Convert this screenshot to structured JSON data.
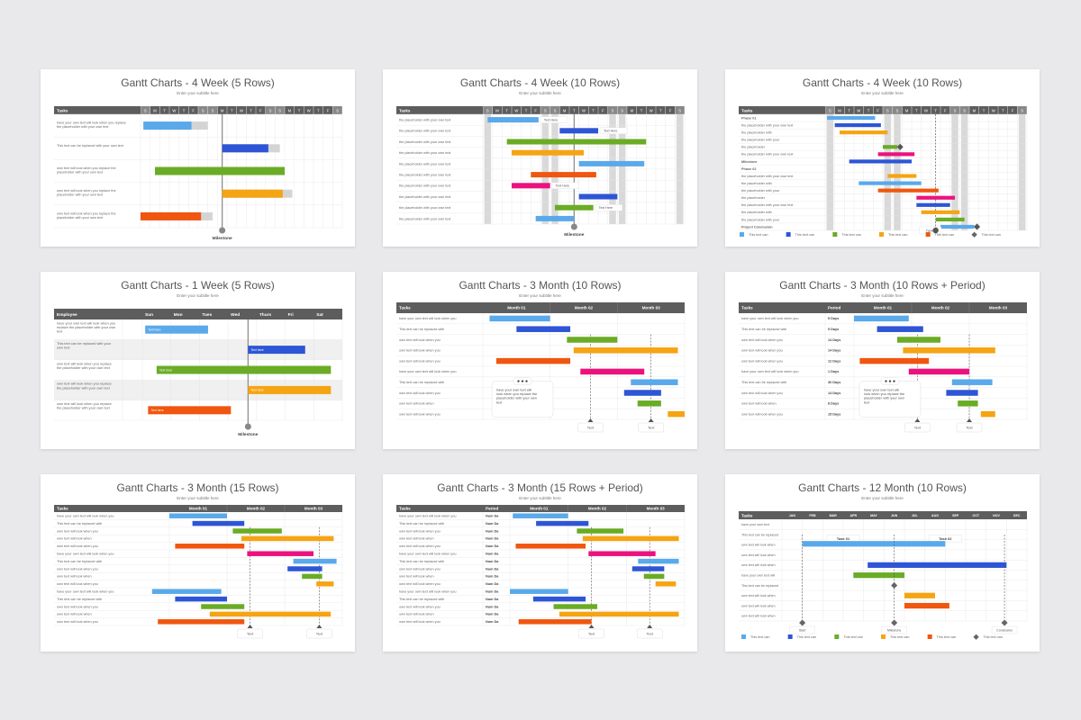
{
  "colors": {
    "blue_light": "#5aa9ea",
    "blue_dark": "#2d55d6",
    "green": "#6aac25",
    "orange": "#f5a413",
    "red": "#f0560f",
    "pink": "#ec127d",
    "gray_bar": "#d4d4d4",
    "header_bg": "#5d5d5d",
    "weekend_shade": "#d9d9d9",
    "milestone": "#888888"
  },
  "common": {
    "subtitle": "Enter your subtitle here",
    "tasks_header": "Tasks",
    "period_header": "Period",
    "milestone_label": "Milestone",
    "text_label": "Text",
    "text_here": "Text Here",
    "tooltip_text": "have your own text will look when you replace the placeholder with your own text",
    "days_labels": [
      "S",
      "M",
      "T",
      "W",
      "T",
      "F",
      "S"
    ],
    "legend_label": "This text can",
    "legend_items": [
      "This text can",
      "This text can",
      "This text can",
      "This text can",
      "This text can",
      "This text can"
    ]
  },
  "charts": [
    {
      "title": "Gantt Charts - 4 Week (5 Rows)",
      "type": "week4_5",
      "header": "Tasks",
      "task_texts": [
        "have your own text will look when you replace the placeholder with your own text",
        "This text can be replaced with your own text",
        "own text will look when you replace the placeholder with your own text",
        "own text will look when you replace the placeholder with your own text",
        "own text will look when you replace the placeholder with your own text"
      ],
      "bars": [
        {
          "start": 0.3,
          "end": 5.3,
          "color": "blue_light",
          "ghost": 7.0
        },
        {
          "start": 8.5,
          "end": 13.3,
          "color": "blue_dark",
          "ghost": 14.5
        },
        {
          "start": 1.5,
          "end": 15.0,
          "color": "green"
        },
        {
          "start": 8.5,
          "end": 14.8,
          "color": "orange",
          "ghost": 15.8
        },
        {
          "start": 0.0,
          "end": 6.3,
          "color": "red",
          "ghost": 7.5
        }
      ],
      "milestone_col": 8.5,
      "milestone": "Milestone"
    },
    {
      "title": "Gantt Charts - 4 Week (10 Rows)",
      "type": "week4_10",
      "header": "Tasks",
      "task_texts": [
        "the placeholder with your own text",
        "the placeholder with your own text",
        "the placeholder with your own text",
        "the placeholder with your own text",
        "the placeholder with your own text",
        "the placeholder with your own text",
        "the placeholder with your own text",
        "the placeholder with your own text",
        "the placeholder with your own text",
        "the placeholder with your own text"
      ],
      "bars": [
        {
          "start": 0.5,
          "end": 5.8,
          "color": "blue_light",
          "note": "Text Here"
        },
        {
          "start": 8.0,
          "end": 12.0,
          "color": "blue_dark",
          "note": "Text Here"
        },
        {
          "start": 2.5,
          "end": 17.0,
          "color": "green"
        },
        {
          "start": 3.0,
          "end": 10.5,
          "color": "orange"
        },
        {
          "start": 10.0,
          "end": 16.8,
          "color": "blue_light"
        },
        {
          "start": 5.0,
          "end": 11.8,
          "color": "red"
        },
        {
          "start": 3.0,
          "end": 7.0,
          "color": "pink",
          "note": "Text Here"
        },
        {
          "start": 10.0,
          "end": 14.0,
          "color": "blue_dark"
        },
        {
          "start": 7.5,
          "end": 11.5,
          "color": "green",
          "note": "Text Here"
        },
        {
          "start": 5.5,
          "end": 9.5,
          "color": "blue_light"
        }
      ],
      "milestone_col": 9.5,
      "milestone": "Milestone"
    },
    {
      "title": "Gantt Charts - 4 Week (10 Rows)",
      "type": "week4_phase",
      "header": "Tasks",
      "task_texts": [
        "Phase 01",
        "the placeholder with your own text",
        "the placeholder with",
        "the placeholder with your",
        "the placeholder",
        "the placeholder with your own text",
        "Milestone",
        "Phase 02",
        "the placeholder with your own text",
        "the placeholder with",
        "the placeholder with your",
        "the placeholder",
        "the placeholder with your own text",
        "the placeholder with",
        "the placeholder with your",
        "Project Conclusion"
      ],
      "bars": [
        {
          "start": 0.2,
          "end": 5.2,
          "color": "blue_light"
        },
        {
          "start": 1.0,
          "end": 5.8,
          "color": "blue_dark"
        },
        {
          "start": 1.5,
          "end": 6.5,
          "color": "orange"
        },
        {
          "start": 6.0,
          "end": 7.5,
          "color": "green",
          "diamond": 7.8
        },
        {
          "start": 5.5,
          "end": 9.3,
          "color": "pink"
        },
        {
          "start": 2.5,
          "end": 9.0,
          "color": "blue_dark"
        },
        {
          "start": 6.5,
          "end": 9.5,
          "color": "orange"
        },
        {
          "start": 3.5,
          "end": 10.0,
          "color": "blue_light"
        },
        {
          "start": 5.5,
          "end": 11.8,
          "color": "red"
        },
        {
          "start": 9.5,
          "end": 13.5,
          "color": "pink"
        },
        {
          "start": 9.5,
          "end": 13.0,
          "color": "blue_dark"
        },
        {
          "start": 10.0,
          "end": 14.0,
          "color": "orange"
        },
        {
          "start": 11.5,
          "end": 14.5,
          "color": "green"
        },
        {
          "start": 12.0,
          "end": 15.5,
          "color": "blue_light",
          "diamond": 15.8
        }
      ],
      "milestone_col": 11.5,
      "milestone": "Tasks"
    },
    {
      "title": "Gantt Charts - 1 Week (5 Rows)",
      "type": "week1",
      "header": "Employee",
      "days": [
        "Sun",
        "Mon",
        "Tues",
        "Wed",
        "Thurs",
        "Fri",
        "Sat"
      ],
      "task_texts": [
        "have your own text will look when you replace the placeholder with your own text",
        "This text can be replaced with your own text",
        "own text will look when you replace the placeholder with your own text",
        "own text will look when you replace the placeholder with your own text",
        "own text will look when you replace the placeholder with your own text"
      ],
      "bars": [
        {
          "start": 0.1,
          "end": 2.3,
          "color": "blue_light",
          "note": "Text here"
        },
        {
          "start": 3.7,
          "end": 5.7,
          "color": "blue_dark",
          "note": "Text here"
        },
        {
          "start": 0.5,
          "end": 6.6,
          "color": "green",
          "note": "Text here"
        },
        {
          "start": 3.7,
          "end": 6.6,
          "color": "orange",
          "note": "Text here"
        },
        {
          "start": 0.2,
          "end": 3.1,
          "color": "red",
          "note": "Text here"
        }
      ],
      "milestone_col": 3.7,
      "milestone": "Milestone"
    },
    {
      "title": "Gantt Charts - 3 Month (10 Rows)",
      "type": "month3_10",
      "header": "Tasks",
      "months": [
        "Month 01",
        "Month 02",
        "Month 03"
      ],
      "task_texts": [
        "have your own text will look when you",
        "This text can be replaced with",
        "own text will look when you",
        "own text will look when you",
        "own text will look when you",
        "have your own text will look when you",
        "This text can be replaced with",
        "own text will look when you",
        "own text will look when",
        "own text will look when you"
      ],
      "bars": [
        {
          "start": 0.1,
          "end": 1.0,
          "color": "blue_light"
        },
        {
          "start": 0.5,
          "end": 1.3,
          "color": "blue_dark"
        },
        {
          "start": 1.25,
          "end": 2.0,
          "color": "green"
        },
        {
          "start": 1.35,
          "end": 2.9,
          "color": "orange"
        },
        {
          "start": 0.2,
          "end": 1.3,
          "color": "red"
        },
        {
          "start": 1.45,
          "end": 2.4,
          "color": "pink"
        },
        {
          "start": 2.2,
          "end": 2.9,
          "color": "blue_light"
        },
        {
          "start": 2.1,
          "end": 2.65,
          "color": "blue_dark"
        },
        {
          "start": 2.3,
          "end": 2.65,
          "color": "green"
        },
        {
          "start": 2.75,
          "end": 3.0,
          "color": "orange"
        }
      ],
      "lines": [
        1.6,
        2.5
      ],
      "tooltip": true
    },
    {
      "title": "Gantt Charts - 3 Month (10 Rows + Period)",
      "type": "month3_period",
      "header": "Tasks",
      "period_header": "Period",
      "months": [
        "Month 01",
        "Month 02",
        "Month 03"
      ],
      "task_texts": [
        "have your own text will look when you",
        "This text can be replaced with",
        "own text will look when you",
        "own text will look when you",
        "own text will look when you",
        "have your own text will look when you",
        "This text can be replaced with",
        "own text will look when you",
        "own text will look when",
        "own text will look when you"
      ],
      "periods": [
        "5 Days",
        "5 Days",
        "14 Days",
        "14 Days",
        "12 Days",
        "1 Days",
        "30 Days",
        "14 Days",
        "8 Days",
        "15 Days"
      ],
      "bars": [
        {
          "start": 0.0,
          "end": 0.95,
          "color": "blue_light"
        },
        {
          "start": 0.4,
          "end": 1.2,
          "color": "blue_dark"
        },
        {
          "start": 0.75,
          "end": 1.5,
          "color": "green"
        },
        {
          "start": 0.85,
          "end": 2.45,
          "color": "orange"
        },
        {
          "start": 0.1,
          "end": 1.3,
          "color": "red"
        },
        {
          "start": 0.95,
          "end": 2.0,
          "color": "pink"
        },
        {
          "start": 1.7,
          "end": 2.4,
          "color": "blue_light"
        },
        {
          "start": 1.6,
          "end": 2.15,
          "color": "blue_dark"
        },
        {
          "start": 1.8,
          "end": 2.15,
          "color": "green"
        },
        {
          "start": 2.2,
          "end": 2.45,
          "color": "orange"
        }
      ],
      "lines": [
        1.1,
        2.0
      ],
      "tooltip": true
    },
    {
      "title": "Gantt Charts - 3 Month (15 Rows)",
      "type": "month3_15",
      "header": "Tasks",
      "months": [
        "Month 01",
        "Month 02",
        "Month 03"
      ],
      "task_texts": [
        "have your own text will look when you",
        "This text can be replaced with",
        "own text will look when you",
        "own text will look when",
        "own text will look when you",
        "have your own text will look when you",
        "This text can be replaced with",
        "own text will look when you",
        "own text will look when",
        "own text will look when you",
        "have your own text will look when you",
        "This text can be replaced with",
        "own text will look when you",
        "own text will look when",
        "own text will look when you"
      ],
      "bars": [
        {
          "start": 0.0,
          "end": 1.0,
          "color": "blue_light"
        },
        {
          "start": 0.4,
          "end": 1.3,
          "color": "blue_dark"
        },
        {
          "start": 1.1,
          "end": 1.95,
          "color": "green"
        },
        {
          "start": 1.25,
          "end": 2.85,
          "color": "orange"
        },
        {
          "start": 0.1,
          "end": 1.3,
          "color": "red"
        },
        {
          "start": 1.35,
          "end": 2.5,
          "color": "pink"
        },
        {
          "start": 2.15,
          "end": 2.9,
          "color": "blue_light"
        },
        {
          "start": 2.05,
          "end": 2.65,
          "color": "blue_dark"
        },
        {
          "start": 2.3,
          "end": 2.65,
          "color": "green"
        },
        {
          "start": 2.55,
          "end": 2.85,
          "color": "orange"
        },
        {
          "start": -0.3,
          "end": 0.9,
          "color": "blue_light"
        },
        {
          "start": 0.1,
          "end": 1.0,
          "color": "blue_dark"
        },
        {
          "start": 0.55,
          "end": 1.3,
          "color": "green"
        },
        {
          "start": 0.7,
          "end": 2.8,
          "color": "orange"
        },
        {
          "start": -0.2,
          "end": 1.3,
          "color": "red"
        }
      ],
      "lines": [
        1.4,
        2.6
      ]
    },
    {
      "title": "Gantt Charts - 3 Month (15 Rows + Period)",
      "type": "month3_15p",
      "header": "Tasks",
      "period_header": "Period",
      "months": [
        "Month 01",
        "Month 02",
        "Month 03"
      ],
      "task_texts": [
        "have your own text will look when you",
        "This text can be replaced with",
        "own text will look when you",
        "own text will look when",
        "own text will look when you",
        "have your own text will look when you",
        "This text can be replaced with",
        "own text will look when you",
        "own text will look when",
        "own text will look when you",
        "have your own text will look when you",
        "This text can be replaced with",
        "own text will look when you",
        "own text will look when",
        "own text will look when you"
      ],
      "periods": [
        "Num Da",
        "Num Da",
        "Num Da",
        "Num Da",
        "Num Da",
        "Num Da",
        "Num Da",
        "Num Da",
        "Num Da",
        "Num Da",
        "Num Da",
        "Num Da",
        "Num Da",
        "Num Da",
        "Num Da"
      ],
      "bars": [
        {
          "start": 0.05,
          "end": 1.0,
          "color": "blue_light"
        },
        {
          "start": 0.45,
          "end": 1.35,
          "color": "blue_dark"
        },
        {
          "start": 1.15,
          "end": 1.95,
          "color": "green"
        },
        {
          "start": 1.25,
          "end": 2.9,
          "color": "orange"
        },
        {
          "start": 0.1,
          "end": 1.3,
          "color": "red"
        },
        {
          "start": 1.35,
          "end": 2.5,
          "color": "pink"
        },
        {
          "start": 2.2,
          "end": 2.9,
          "color": "blue_light"
        },
        {
          "start": 2.1,
          "end": 2.65,
          "color": "blue_dark"
        },
        {
          "start": 2.3,
          "end": 2.65,
          "color": "green"
        },
        {
          "start": 2.5,
          "end": 2.85,
          "color": "orange"
        },
        {
          "start": 0.0,
          "end": 1.0,
          "color": "blue_light"
        },
        {
          "start": 0.4,
          "end": 1.3,
          "color": "blue_dark"
        },
        {
          "start": 0.75,
          "end": 1.5,
          "color": "green"
        },
        {
          "start": 0.85,
          "end": 2.9,
          "color": "orange"
        },
        {
          "start": 0.15,
          "end": 1.4,
          "color": "red"
        }
      ],
      "lines": [
        1.4,
        2.4
      ]
    },
    {
      "title": "Gantt Charts - 12 Month (10 Rows)",
      "type": "month12",
      "header": "Tasks",
      "months": [
        "JAN",
        "FEB",
        "MAR",
        "APR",
        "MAY",
        "JUN",
        "JUL",
        "AUG",
        "SEP",
        "OCT",
        "NOV",
        "DEC"
      ],
      "task_texts": [
        "have your own text",
        "This text can be replaced",
        "own text will look when",
        "own text will look when",
        "own text will look when",
        "have your own text will",
        "This text can be replaced",
        "own text will look when",
        "own text will look when",
        "own text will look when"
      ],
      "bars": [
        {
          "start": 1.0,
          "end": 8.0,
          "color": "blue_light"
        },
        {
          "start": 4.2,
          "end": 11.0,
          "color": "blue_dark"
        },
        {
          "start": 3.5,
          "end": 6.0,
          "color": "green"
        },
        {
          "start": 6.0,
          "end": 7.5,
          "color": "orange"
        },
        {
          "start": 6.0,
          "end": 8.2,
          "color": "red"
        }
      ],
      "notes": [
        {
          "label": "Task 01",
          "month": 3.0
        },
        {
          "label": "Task 02",
          "month": 8.0
        }
      ],
      "vlines": [
        {
          "month": 1.0,
          "label": "Start"
        },
        {
          "month": 5.5,
          "label": "Milestone"
        },
        {
          "month": 10.9,
          "label": "Conclusion"
        }
      ]
    }
  ]
}
